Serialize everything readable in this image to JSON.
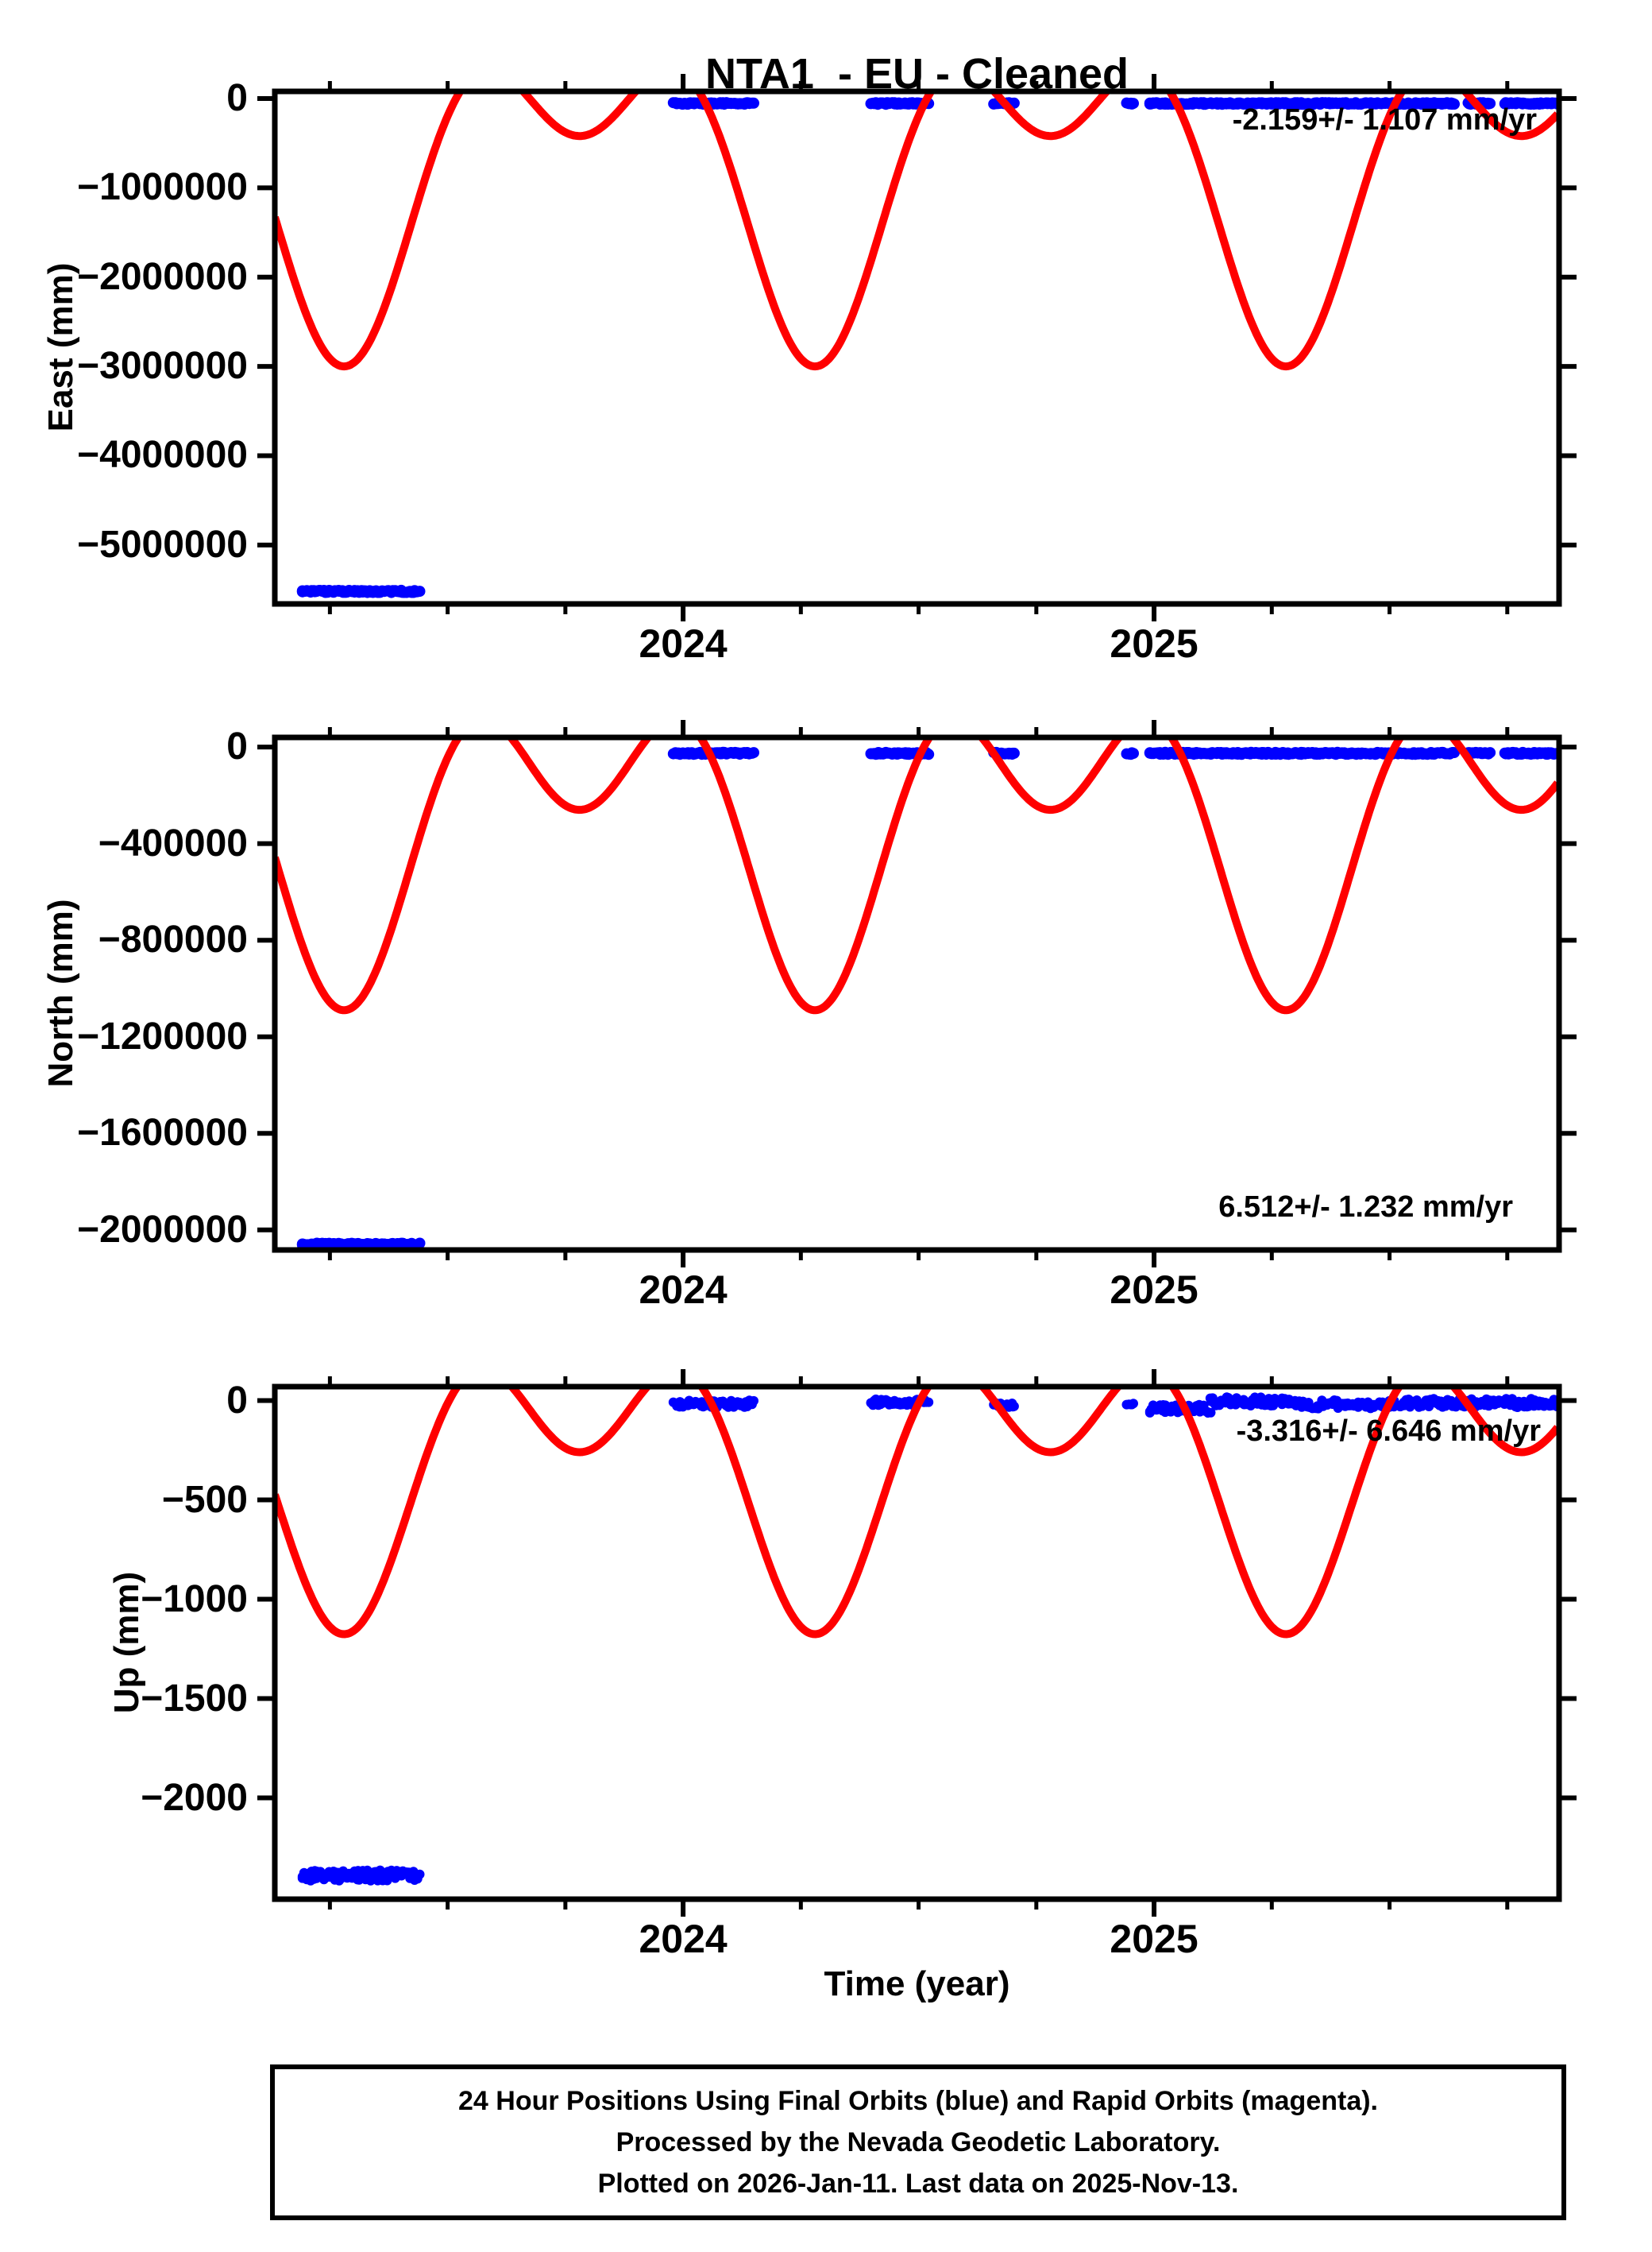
{
  "title": "NTA1  - EU - Cleaned",
  "colors": {
    "final_orbit_blue": "#0000ff",
    "rapid_orbit_magenta": "#ff00ff",
    "model_red": "#ff0000",
    "axis_black": "#000000",
    "background": "#ffffff"
  },
  "time_axis": {
    "label": "Time (year)",
    "min": 2023.133,
    "max": 2025.86,
    "major_ticks": [
      2024,
      2025
    ],
    "minor_tick_interval": 0.25
  },
  "chart_data": [
    {
      "type": "line+scatter",
      "station": "NTA1",
      "component": "East",
      "ylabel": "East (mm)",
      "ymax": 80000,
      "ymin": -5660000,
      "yticks": [
        0,
        -1000000,
        -2000000,
        -3000000,
        -4000000,
        -5000000
      ],
      "trend_label": "-2.159+/- 1.107 mm/yr",
      "trend_label_corner": "top-right",
      "model_curve": {
        "color_key": "model_red",
        "mean": -800000,
        "annual_amplitude": 1290000,
        "annual_phase_yr": 0.28,
        "semiannual_amplitude": 910000,
        "semiannual_phase_yr": 0.03
      },
      "point_radius": 7,
      "data_segments": [
        {
          "t_start": 2023.19,
          "t_end": 2023.44,
          "value": -5520000,
          "jitter": 12000
        },
        {
          "t_start": 2023.98,
          "t_end": 2024.15,
          "value": -55000,
          "jitter": 9000
        },
        {
          "t_start": 2024.4,
          "t_end": 2024.52,
          "value": -55000,
          "jitter": 9000
        },
        {
          "t_start": 2024.66,
          "t_end": 2024.705,
          "value": -55000,
          "jitter": 9000
        },
        {
          "t_start": 2024.943,
          "t_end": 2024.957,
          "value": -55000,
          "jitter": 9000
        },
        {
          "t_start": 2024.99,
          "t_end": 2025.64,
          "value": -55000,
          "jitter": 9000
        },
        {
          "t_start": 2025.665,
          "t_end": 2025.715,
          "value": -55000,
          "jitter": 9000
        },
        {
          "t_start": 2025.745,
          "t_end": 2025.858,
          "value": -55000,
          "jitter": 9000
        }
      ]
    },
    {
      "type": "line+scatter",
      "station": "NTA1",
      "component": "North",
      "ylabel": "North (mm)",
      "ymax": 40000,
      "ymin": -2083000,
      "yticks": [
        0,
        -400000,
        -800000,
        -1200000,
        -1600000,
        -2000000
      ],
      "trend_label": "6.512+/- 1.232 mm/yr",
      "trend_label_corner": "bottom-right",
      "model_curve": {
        "color_key": "model_red",
        "mean": -307500,
        "annual_amplitude": 415000,
        "annual_phase_yr": 0.28,
        "semiannual_amplitude": 367500,
        "semiannual_phase_yr": 0.03
      },
      "point_radius": 7,
      "data_segments": [
        {
          "t_start": 2023.19,
          "t_end": 2023.44,
          "value": -2060000,
          "jitter": 5000
        },
        {
          "t_start": 2023.98,
          "t_end": 2024.15,
          "value": -26000,
          "jitter": 4000
        },
        {
          "t_start": 2024.4,
          "t_end": 2024.52,
          "value": -26000,
          "jitter": 4000
        },
        {
          "t_start": 2024.66,
          "t_end": 2024.705,
          "value": -26000,
          "jitter": 4000
        },
        {
          "t_start": 2024.943,
          "t_end": 2024.957,
          "value": -26000,
          "jitter": 4000
        },
        {
          "t_start": 2024.99,
          "t_end": 2025.64,
          "value": -26000,
          "jitter": 4000
        },
        {
          "t_start": 2025.665,
          "t_end": 2025.715,
          "value": -26000,
          "jitter": 4000
        },
        {
          "t_start": 2025.745,
          "t_end": 2025.858,
          "value": -26000,
          "jitter": 4000
        }
      ]
    },
    {
      "type": "line+scatter",
      "station": "NTA1",
      "component": "Up",
      "ylabel": "Up (mm)",
      "ymax": 70,
      "ymin": -2510,
      "yticks": [
        0,
        -500,
        -1000,
        -1500,
        -2000
      ],
      "trend_label": "-3.316+/- 6.646 mm/yr",
      "trend_label_corner": "top-right",
      "model_curve": {
        "color_key": "model_red",
        "mean": -309,
        "annual_amplitude": 458,
        "annual_phase_yr": 0.28,
        "semiannual_amplitude": 409,
        "semiannual_phase_yr": 0.03
      },
      "point_radius": 6,
      "data_segments": [
        {
          "t_start": 2023.19,
          "t_end": 2023.44,
          "value": -2390,
          "jitter": 28
        },
        {
          "t_start": 2023.98,
          "t_end": 2024.15,
          "value": -15,
          "jitter": 18
        },
        {
          "t_start": 2024.4,
          "t_end": 2024.52,
          "value": -8,
          "jitter": 15
        },
        {
          "t_start": 2024.66,
          "t_end": 2024.705,
          "value": -22,
          "jitter": 12
        },
        {
          "t_start": 2024.943,
          "t_end": 2024.957,
          "value": -18,
          "jitter": 5
        },
        {
          "t_start": 2024.99,
          "t_end": 2025.12,
          "value": -42,
          "jitter": 22
        },
        {
          "t_start": 2025.12,
          "t_end": 2025.3,
          "value": -5,
          "jitter": 22
        },
        {
          "t_start": 2025.3,
          "t_end": 2025.5,
          "value": -20,
          "jitter": 22
        },
        {
          "t_start": 2025.5,
          "t_end": 2025.858,
          "value": -12,
          "jitter": 22
        }
      ]
    }
  ],
  "caption": {
    "lines": [
      "24 Hour Positions Using Final Orbits (blue) and Rapid Orbits (magenta).",
      "Processed by the Nevada Geodetic Laboratory.",
      "Plotted on 2026-Jan-11. Last data on 2025-Nov-13."
    ]
  }
}
